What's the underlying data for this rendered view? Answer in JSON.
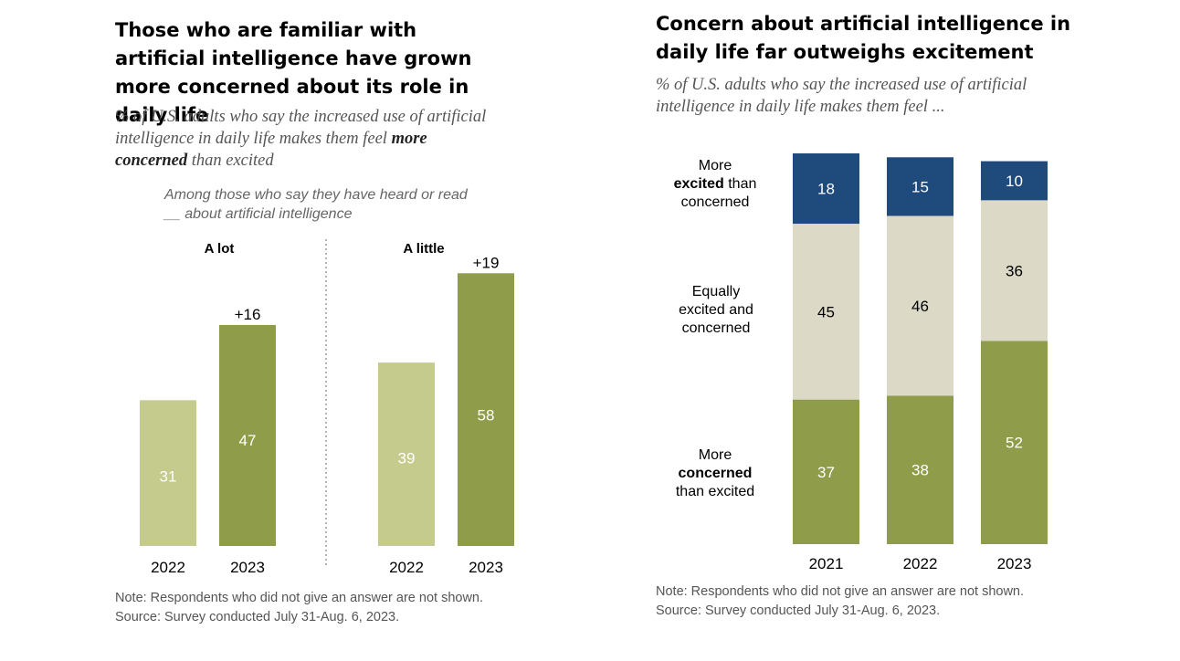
{
  "left_panel": {
    "title": "Those who are familiar with artificial intelligence have grown more concerned about its role in daily life",
    "subtitle_pre": "% of U.S. adults who say the increased use of artificial intelligence in daily life makes them feel",
    "subtitle_bold": "more concerned",
    "subtitle_post": "than excited",
    "among_line1": "Among those who say they have heard or read",
    "among_line2": "__ about artificial intelligence",
    "note": "Note: Respondents who did not give an answer are not shown.",
    "source": "Source: Survey conducted July 31-Aug. 6, 2023.",
    "colors": {
      "year_2022": "#c5cb8c",
      "year_2023": "#8f9c4a",
      "divider": "#888888"
    }
  },
  "right_panel": {
    "title": "Concern about artificial intelligence in daily life far outweighs excitement",
    "subtitle": "% of U.S. adults who say the increased use of artificial intelligence in daily life makes them feel ...",
    "label_excited": {
      "pre": "More",
      "bold": "excited",
      "post": "than concerned"
    },
    "label_equal": "Equally excited and concerned",
    "label_concerned": {
      "pre": "More",
      "bold": "concerned",
      "post": "than excited"
    },
    "note": "Note: Respondents who did not give an answer are not shown.",
    "source": "Source: Survey conducted July 31-Aug. 6, 2023.",
    "colors": {
      "excited": "#1f4a7c",
      "equal": "#dcd9c6",
      "concerned": "#8f9c4a"
    }
  },
  "chart_data": [
    {
      "type": "bar",
      "groups": [
        {
          "name": "A lot",
          "categories": [
            "2022",
            "2023"
          ],
          "values": [
            31,
            47
          ],
          "change": "+16"
        },
        {
          "name": "A little",
          "categories": [
            "2022",
            "2023"
          ],
          "values": [
            39,
            58
          ],
          "change": "+19"
        }
      ]
    },
    {
      "type": "bar",
      "stacked": true,
      "categories": [
        "2021",
        "2022",
        "2023"
      ],
      "series": [
        {
          "name": "More concerned than excited",
          "values": [
            37,
            38,
            52
          ]
        },
        {
          "name": "Equally excited and concerned",
          "values": [
            45,
            46,
            36
          ]
        },
        {
          "name": "More excited than concerned",
          "values": [
            18,
            15,
            10
          ]
        }
      ]
    }
  ]
}
